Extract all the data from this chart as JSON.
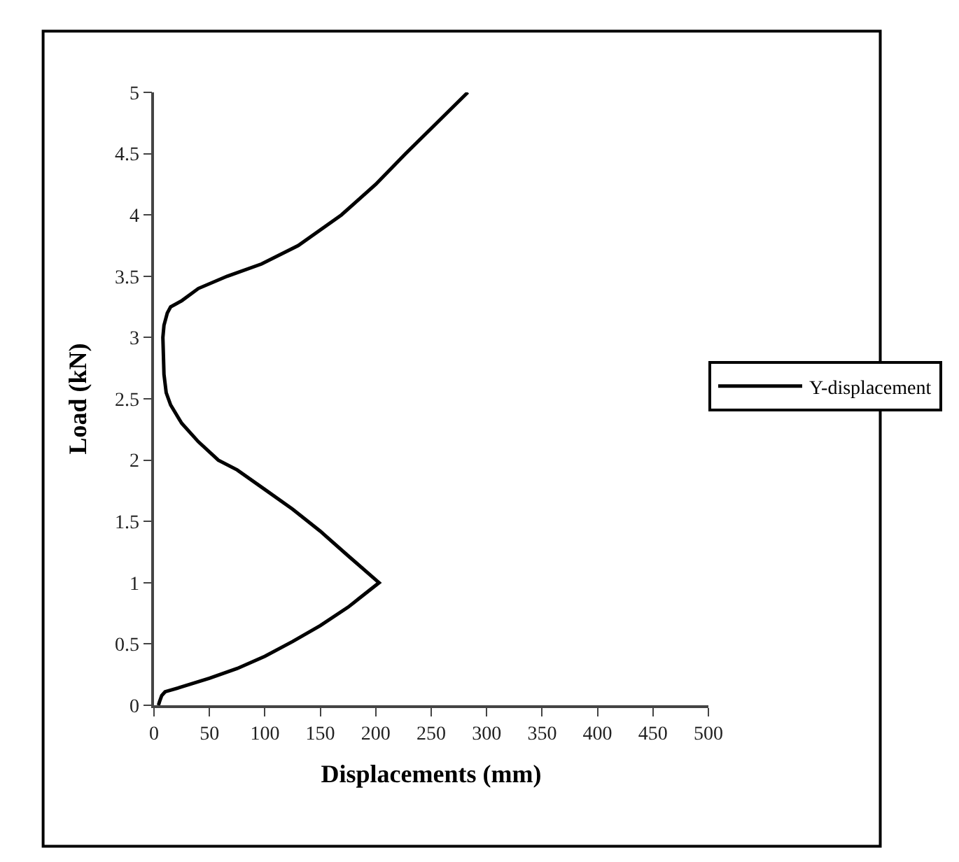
{
  "chart_data": {
    "type": "line",
    "xlabel": "Displacements (mm)",
    "ylabel": "Load (kN)",
    "series": [
      {
        "name": "Y-displacement",
        "color": "#000000",
        "x": [
          4,
          5,
          7,
          10,
          25,
          50,
          75,
          100,
          125,
          150,
          175,
          203,
          175,
          150,
          125,
          100,
          75,
          58,
          40,
          25,
          15,
          11,
          9,
          8,
          9,
          12,
          15,
          25,
          40,
          66,
          97,
          130,
          169,
          200,
          227,
          255,
          283
        ],
        "values": [
          0,
          0.03,
          0.08,
          0.11,
          0.15,
          0.22,
          0.3,
          0.4,
          0.52,
          0.65,
          0.8,
          1.0,
          1.22,
          1.42,
          1.6,
          1.76,
          1.92,
          2.0,
          2.15,
          2.3,
          2.45,
          2.55,
          2.7,
          3.0,
          3.1,
          3.2,
          3.25,
          3.3,
          3.4,
          3.5,
          3.6,
          3.75,
          4.0,
          4.25,
          4.5,
          4.75,
          5.0
        ]
      }
    ],
    "xlim": [
      0,
      500
    ],
    "xticks": [
      0,
      50,
      100,
      150,
      200,
      250,
      300,
      350,
      400,
      450,
      500
    ],
    "ylim": [
      0,
      5
    ],
    "yticks": [
      0,
      0.5,
      1,
      1.5,
      2,
      2.5,
      3,
      3.5,
      4,
      4.5,
      5
    ],
    "legend": "right",
    "marker": "none",
    "line_style": "solid"
  }
}
